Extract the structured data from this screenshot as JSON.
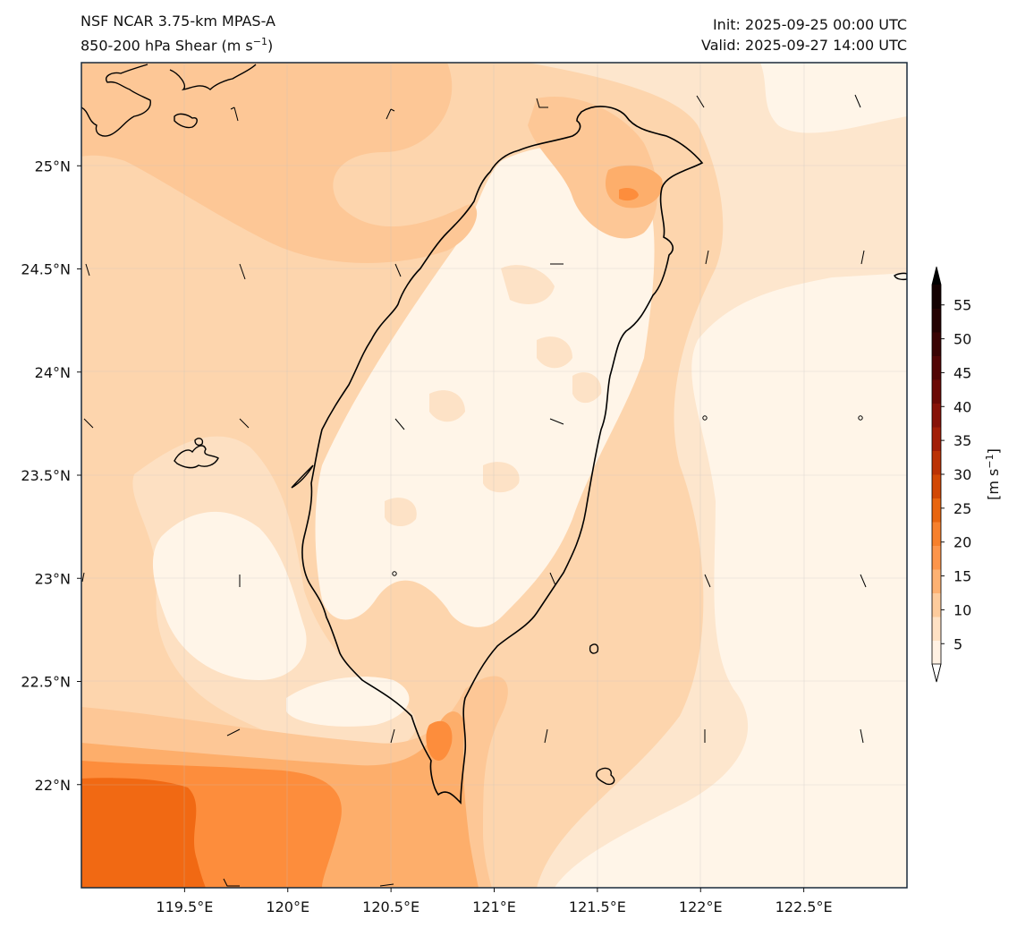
{
  "header": {
    "model": "NSF NCAR 3.75-km MPAS-A",
    "field_text": "850-200 hPa Shear (m s",
    "field_exp": "−1",
    "field_close": ")",
    "init": "Init: 2025-09-25 00:00 UTC",
    "valid": "Valid: 2025-09-27 14:00 UTC"
  },
  "map": {
    "lon_range": [
      119.0,
      123.0
    ],
    "lat_range": [
      21.5,
      25.5
    ],
    "x_ticks": [
      "119.5°E",
      "120°E",
      "120.5°E",
      "121°E",
      "121.5°E",
      "122°E",
      "122.5°E"
    ],
    "x_tick_values": [
      119.5,
      120.0,
      120.5,
      121.0,
      121.5,
      122.0,
      122.5
    ],
    "y_ticks": [
      "25°N",
      "24.5°N",
      "24°N",
      "23.5°N",
      "23°N",
      "22.5°N",
      "22°N"
    ],
    "y_tick_values": [
      25.0,
      24.5,
      24.0,
      23.5,
      23.0,
      22.5,
      22.0
    ],
    "fill_colors": {
      "low": "#fff5e8",
      "light": "#fde0c2",
      "medium": "#fdc796",
      "orange": "#fdae6b",
      "strong": "#fd8d3c",
      "stronger": "#fd7f1e",
      "intense": "#f16913"
    }
  },
  "colorbar": {
    "ticks": [
      "5",
      "10",
      "15",
      "20",
      "25",
      "30",
      "35",
      "40",
      "45",
      "50",
      "55"
    ],
    "tick_values": [
      5,
      10,
      15,
      20,
      25,
      30,
      35,
      40,
      45,
      50,
      55
    ],
    "label_main": "[m s",
    "label_exp": "−1",
    "label_close": "]",
    "colors": [
      "#ffffff",
      "#fff1e3",
      "#fee1c4",
      "#fdcb9c",
      "#fdb172",
      "#fd954b",
      "#f7802c",
      "#e8650f",
      "#d24805",
      "#bb3205",
      "#a21e07",
      "#871208",
      "#6c0a06",
      "#520505",
      "#3a0303",
      "#250202",
      "#140101",
      "#000000"
    ]
  }
}
